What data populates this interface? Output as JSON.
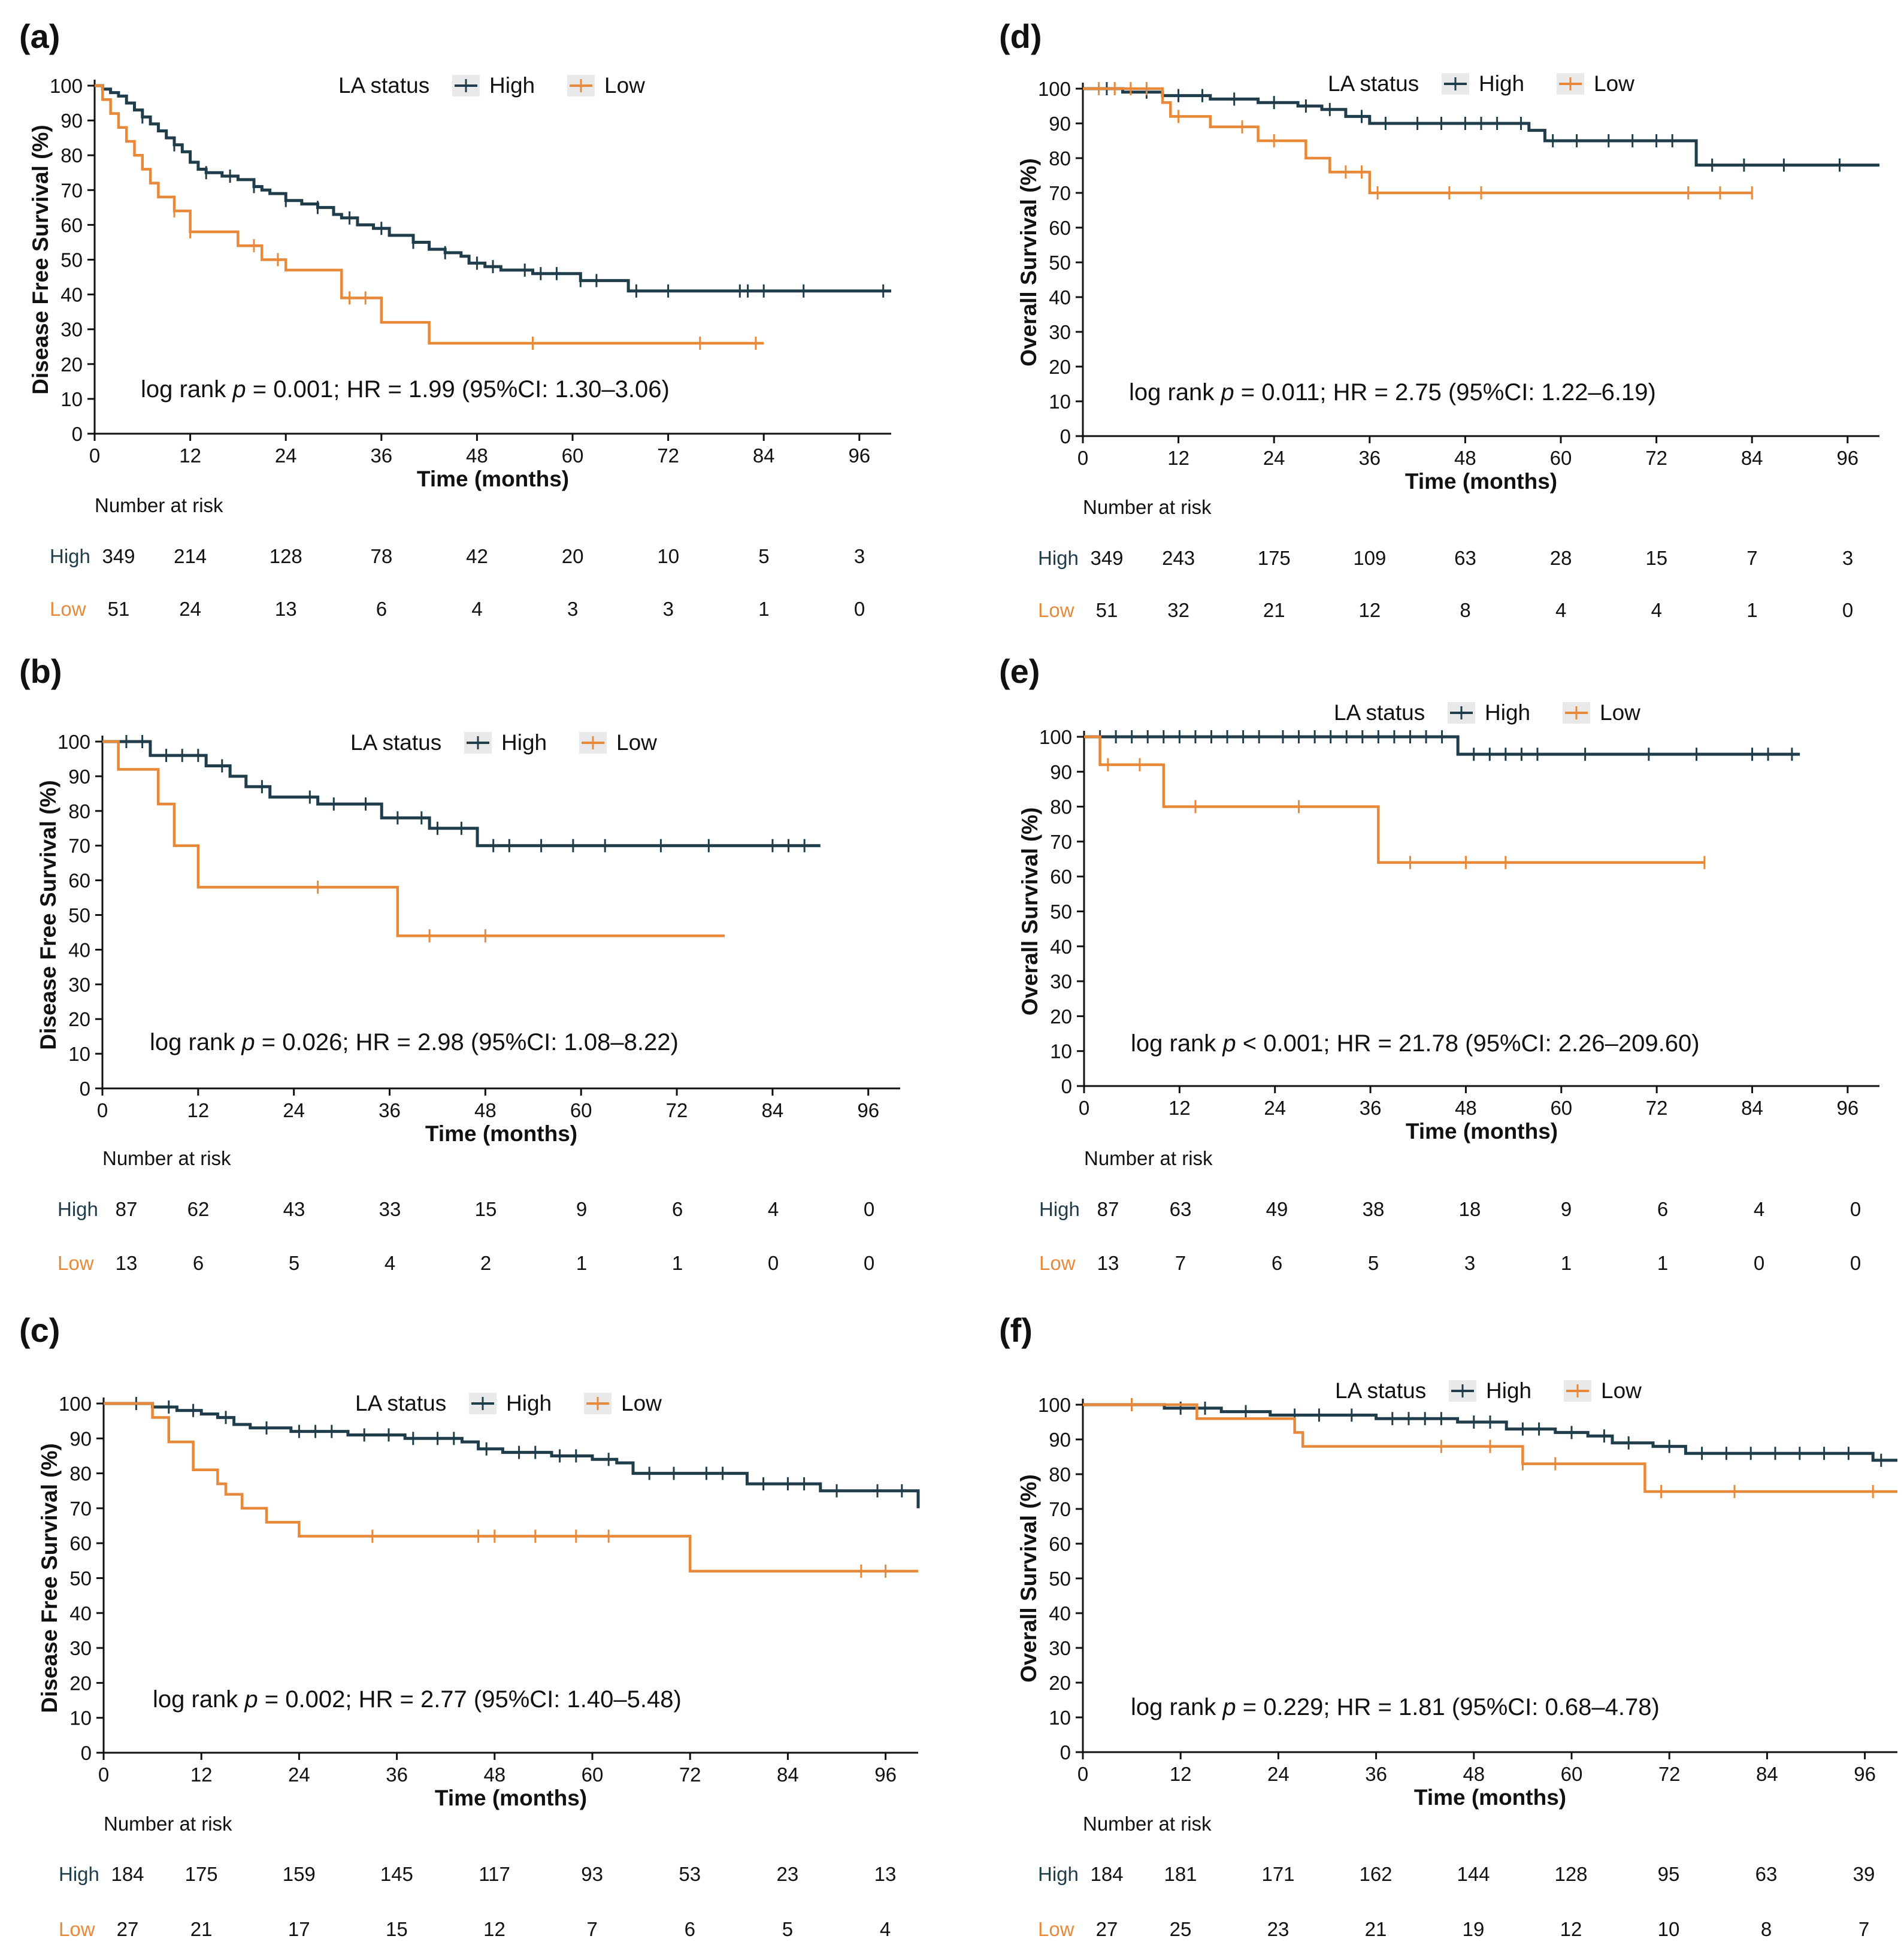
{
  "colors": {
    "high": "#1f3d4a",
    "low": "#e8893a",
    "axis": "#111111",
    "text": "#111111"
  },
  "chart_data": [
    {
      "id": "a",
      "type": "line",
      "panel_label": "(a)",
      "ylabel": "Disease Free Survival (%)",
      "xlabel": "Time (months)",
      "legend_title": "LA status",
      "legend": [
        "High",
        "Low"
      ],
      "xticks": [
        0,
        12,
        24,
        36,
        48,
        60,
        72,
        84,
        96
      ],
      "xlim": [
        0,
        100
      ],
      "yticks": [
        0,
        10,
        20,
        30,
        40,
        50,
        60,
        70,
        80,
        90,
        100
      ],
      "ylim": [
        0,
        100
      ],
      "annotation": {
        "pre": "log rank ",
        "p": "p",
        "post": " = 0.001; HR = 1.99 (95%CI: 1.30–3.06)"
      },
      "risk_title": "Number at risk",
      "risk": [
        {
          "label": "High",
          "values": [
            "349",
            "214",
            "128",
            "78",
            "42",
            "20",
            "10",
            "5",
            "3"
          ]
        },
        {
          "label": "Low",
          "values": [
            "51",
            "24",
            "13",
            "6",
            "4",
            "3",
            "3",
            "1",
            "0"
          ]
        }
      ],
      "series": [
        {
          "name": "High",
          "x": [
            0,
            1,
            2,
            3,
            4,
            5,
            6,
            7,
            8,
            9,
            10,
            11,
            12,
            13,
            14,
            16,
            18,
            20,
            21,
            22,
            24,
            26,
            28,
            30,
            31,
            33,
            35,
            37,
            40,
            42,
            44,
            46,
            47,
            49,
            51,
            55,
            61,
            67,
            100
          ],
          "y": [
            100,
            99,
            98,
            97,
            95,
            93,
            91,
            89,
            87,
            85,
            83,
            81,
            78,
            76,
            75,
            74,
            73,
            71,
            70,
            69,
            67,
            66,
            65,
            63,
            62,
            60,
            59,
            57,
            55,
            53,
            52,
            51,
            49,
            48,
            47,
            46,
            44,
            41,
            41
          ],
          "censor": [
            6,
            10,
            14,
            17,
            20,
            24,
            28,
            32,
            36,
            40,
            44,
            48,
            50,
            54,
            56,
            58,
            61,
            63,
            68,
            72,
            81,
            82,
            84,
            89,
            99
          ]
        },
        {
          "name": "Low",
          "x": [
            0,
            1,
            2,
            3,
            4,
            5,
            6,
            7,
            8,
            10,
            12,
            18,
            21,
            24,
            31,
            36,
            42,
            84
          ],
          "y": [
            100,
            96,
            92,
            88,
            84,
            80,
            76,
            72,
            68,
            64,
            58,
            54,
            50,
            47,
            39,
            32,
            26,
            26
          ],
          "censor": [
            10,
            12,
            20,
            23,
            32,
            34,
            55,
            76,
            83
          ]
        }
      ]
    },
    {
      "id": "b",
      "type": "line",
      "panel_label": "(b)",
      "ylabel": "Disease Free Survival (%)",
      "xlabel": "Time (months)",
      "legend_title": "LA status",
      "legend": [
        "High",
        "Low"
      ],
      "xticks": [
        0,
        12,
        24,
        36,
        48,
        60,
        72,
        84,
        96
      ],
      "xlim": [
        0,
        100
      ],
      "yticks": [
        0,
        10,
        20,
        30,
        40,
        50,
        60,
        70,
        80,
        90,
        100
      ],
      "ylim": [
        0,
        100
      ],
      "annotation": {
        "pre": "log rank ",
        "p": "p",
        "post": " = 0.026; HR = 2.98 (95%CI: 1.08–8.22)"
      },
      "risk_title": "Number at risk",
      "risk": [
        {
          "label": "High",
          "values": [
            "87",
            "62",
            "43",
            "33",
            "15",
            "9",
            "6",
            "4",
            "0"
          ]
        },
        {
          "label": "Low",
          "values": [
            "13",
            "6",
            "5",
            "4",
            "2",
            "1",
            "1",
            "0",
            "0"
          ]
        }
      ],
      "series": [
        {
          "name": "High",
          "x": [
            0,
            6,
            13,
            16,
            18,
            21,
            27,
            35,
            41,
            47,
            90
          ],
          "y": [
            100,
            96,
            93,
            90,
            87,
            84,
            82,
            78,
            75,
            70,
            70
          ],
          "censor": [
            3,
            5,
            8,
            10,
            12,
            15,
            20,
            26,
            29,
            33,
            37,
            40,
            42,
            45,
            49,
            51,
            55,
            59,
            63,
            70,
            76,
            84,
            86,
            88
          ]
        },
        {
          "name": "Low",
          "x": [
            0,
            2,
            7,
            9,
            12,
            37,
            78
          ],
          "y": [
            100,
            92,
            82,
            70,
            58,
            44,
            44
          ],
          "censor": [
            27,
            41,
            48
          ]
        }
      ]
    },
    {
      "id": "c",
      "type": "line",
      "panel_label": "(c)",
      "ylabel": "Disease Free Survival (%)",
      "xlabel": "Time (months)",
      "legend_title": "LA status",
      "legend": [
        "High",
        "Low"
      ],
      "xticks": [
        0,
        12,
        24,
        36,
        48,
        60,
        72,
        84,
        96
      ],
      "xlim": [
        0,
        100
      ],
      "yticks": [
        0,
        10,
        20,
        30,
        40,
        50,
        60,
        70,
        80,
        90,
        100
      ],
      "ylim": [
        0,
        100
      ],
      "annotation": {
        "pre": "log rank ",
        "p": "p",
        "post": " = 0.002; HR = 2.77 (95%CI: 1.40–5.48)"
      },
      "risk_title": "Number at risk",
      "risk": [
        {
          "label": "High",
          "values": [
            "184",
            "175",
            "159",
            "145",
            "117",
            "93",
            "53",
            "23",
            "13"
          ]
        },
        {
          "label": "Low",
          "values": [
            "27",
            "21",
            "17",
            "15",
            "12",
            "7",
            "6",
            "5",
            "4"
          ]
        }
      ],
      "series": [
        {
          "name": "High",
          "x": [
            0,
            6,
            9,
            12,
            14,
            16,
            18,
            23,
            30,
            37,
            44,
            46,
            49,
            55,
            60,
            63,
            65,
            72,
            79,
            88,
            100
          ],
          "y": [
            100,
            99,
            98,
            97,
            96,
            94,
            93,
            92,
            91,
            90,
            89,
            87,
            86,
            85,
            84,
            83,
            80,
            80,
            77,
            75,
            70
          ],
          "censor": [
            4,
            8,
            11,
            15,
            20,
            24,
            26,
            28,
            32,
            35,
            38,
            41,
            43,
            47,
            51,
            53,
            56,
            58,
            62,
            67,
            70,
            74,
            76,
            81,
            84,
            86,
            90,
            95,
            98
          ]
        },
        {
          "name": "Low",
          "x": [
            0,
            6,
            8,
            11,
            14,
            15,
            17,
            20,
            24,
            29,
            72,
            100
          ],
          "y": [
            100,
            96,
            89,
            81,
            77,
            74,
            70,
            66,
            62,
            62,
            52,
            52
          ],
          "censor": [
            33,
            46,
            48,
            53,
            58,
            62,
            93,
            96
          ]
        }
      ]
    },
    {
      "id": "d",
      "type": "line",
      "panel_label": "(d)",
      "ylabel": "Overall Survival (%)",
      "xlabel": "Time (months)",
      "legend_title": "LA status",
      "legend": [
        "High",
        "Low"
      ],
      "xticks": [
        0,
        12,
        24,
        36,
        48,
        60,
        72,
        84,
        96
      ],
      "xlim": [
        0,
        100
      ],
      "yticks": [
        0,
        10,
        20,
        30,
        40,
        50,
        60,
        70,
        80,
        90,
        100
      ],
      "ylim": [
        0,
        100
      ],
      "annotation": {
        "pre": "log rank ",
        "p": "p",
        "post": " = 0.011; HR = 2.75 (95%CI: 1.22–6.19)"
      },
      "risk_title": "Number at risk",
      "risk": [
        {
          "label": "High",
          "values": [
            "349",
            "243",
            "175",
            "109",
            "63",
            "28",
            "15",
            "7",
            "3"
          ]
        },
        {
          "label": "Low",
          "values": [
            "51",
            "32",
            "21",
            "12",
            "8",
            "4",
            "4",
            "1",
            "0"
          ]
        }
      ],
      "series": [
        {
          "name": "High",
          "x": [
            0,
            5,
            10,
            16,
            22,
            27,
            30,
            33,
            36,
            40,
            56,
            58,
            64,
            77,
            100
          ],
          "y": [
            100,
            99,
            98,
            97,
            96,
            95,
            94,
            92,
            90,
            90,
            88,
            85,
            85,
            78,
            78
          ],
          "censor": [
            3,
            8,
            12,
            15,
            19,
            24,
            28,
            31,
            35,
            38,
            42,
            45,
            48,
            50,
            52,
            55,
            59,
            62,
            66,
            69,
            72,
            74,
            79,
            83,
            88,
            95
          ]
        },
        {
          "name": "Low",
          "x": [
            0,
            10,
            11,
            16,
            22,
            28,
            31,
            36,
            84
          ],
          "y": [
            100,
            96,
            92,
            89,
            85,
            80,
            76,
            70,
            70
          ],
          "censor": [
            2,
            4,
            6,
            8,
            12,
            20,
            24,
            33,
            35,
            37,
            46,
            50,
            76,
            80,
            84
          ]
        }
      ]
    },
    {
      "id": "e",
      "type": "line",
      "panel_label": "(e)",
      "ylabel": "Overall Survival (%)",
      "xlabel": "Time (months)",
      "legend_title": "LA status",
      "legend": [
        "High",
        "Low"
      ],
      "xticks": [
        0,
        12,
        24,
        36,
        48,
        60,
        72,
        84,
        96
      ],
      "xlim": [
        0,
        100
      ],
      "yticks": [
        0,
        10,
        20,
        30,
        40,
        50,
        60,
        70,
        80,
        90,
        100
      ],
      "ylim": [
        0,
        100
      ],
      "annotation": {
        "pre": "log rank ",
        "p": "p",
        "post": " < 0.001; HR = 21.78 (95%CI: 2.26–209.60)"
      },
      "risk_title": "Number at risk",
      "risk": [
        {
          "label": "High",
          "values": [
            "87",
            "63",
            "49",
            "38",
            "18",
            "9",
            "6",
            "4",
            "0"
          ]
        },
        {
          "label": "Low",
          "values": [
            "13",
            "7",
            "6",
            "5",
            "3",
            "1",
            "1",
            "0",
            "0"
          ]
        }
      ],
      "series": [
        {
          "name": "High",
          "x": [
            0,
            47,
            90
          ],
          "y": [
            100,
            95,
            95
          ],
          "censor": [
            2,
            4,
            6,
            8,
            10,
            12,
            14,
            16,
            18,
            20,
            22,
            25,
            27,
            29,
            31,
            33,
            35,
            37,
            39,
            41,
            43,
            45,
            49,
            51,
            53,
            55,
            57,
            63,
            71,
            77,
            84,
            86,
            89
          ]
        },
        {
          "name": "Low",
          "x": [
            0,
            2,
            10,
            37,
            78
          ],
          "y": [
            100,
            92,
            80,
            64,
            64
          ],
          "censor": [
            3,
            7,
            14,
            27,
            41,
            48,
            53,
            78
          ]
        }
      ]
    },
    {
      "id": "f",
      "type": "line",
      "panel_label": "(f)",
      "ylabel": "Overall Survival (%)",
      "xlabel": "Time (months)",
      "legend_title": "LA status",
      "legend": [
        "High",
        "Low"
      ],
      "xticks": [
        0,
        12,
        24,
        36,
        48,
        60,
        72,
        84,
        96
      ],
      "xlim": [
        0,
        100
      ],
      "yticks": [
        0,
        10,
        20,
        30,
        40,
        50,
        60,
        70,
        80,
        90,
        100
      ],
      "ylim": [
        0,
        100
      ],
      "annotation": {
        "pre": "log rank ",
        "p": "p",
        "post": " = 0.229; HR = 1.81 (95%CI: 0.68–4.78)"
      },
      "risk_title": "Number at risk",
      "risk": [
        {
          "label": "High",
          "values": [
            "184",
            "181",
            "171",
            "162",
            "144",
            "128",
            "95",
            "63",
            "39"
          ]
        },
        {
          "label": "Low",
          "values": [
            "27",
            "25",
            "23",
            "21",
            "19",
            "12",
            "10",
            "8",
            "7"
          ]
        }
      ],
      "series": [
        {
          "name": "High",
          "x": [
            0,
            10,
            17,
            23,
            36,
            46,
            52,
            58,
            62,
            65,
            70,
            74,
            97,
            100
          ],
          "y": [
            100,
            99,
            98,
            97,
            96,
            95,
            93,
            92,
            91,
            89,
            88,
            86,
            84,
            84
          ],
          "censor": [
            6,
            12,
            15,
            20,
            26,
            29,
            33,
            38,
            40,
            42,
            44,
            48,
            50,
            54,
            56,
            60,
            64,
            67,
            72,
            76,
            79,
            82,
            85,
            88,
            91,
            94,
            98
          ]
        },
        {
          "name": "Low",
          "x": [
            0,
            14,
            26,
            27,
            54,
            69,
            100
          ],
          "y": [
            100,
            96,
            92,
            88,
            83,
            75,
            75
          ],
          "censor": [
            6,
            44,
            50,
            54,
            58,
            71,
            80,
            97
          ]
        }
      ]
    }
  ]
}
